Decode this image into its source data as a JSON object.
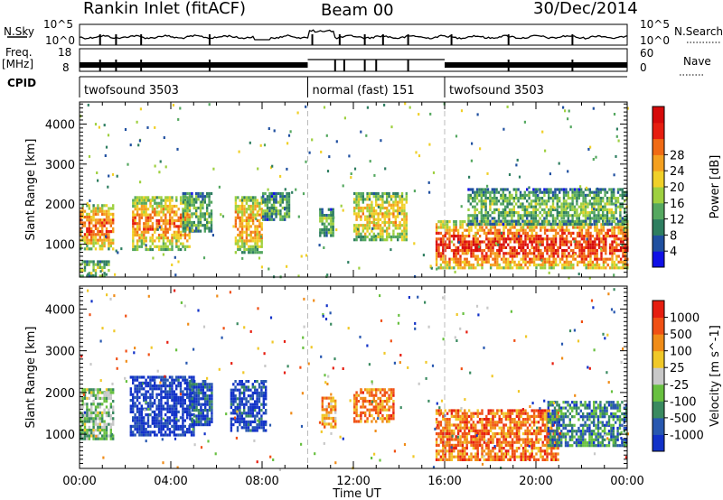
{
  "header": {
    "station": "Rankin Inlet (fitACF)",
    "beam": "Beam 00",
    "date": "30/Dec/2014"
  },
  "strip_labels": {
    "nsky": "N.Sky",
    "nsearch": "N.Search",
    "freq_line1": "Freq.",
    "freq_line2": "[MHz]",
    "nave": "Nave",
    "cpid": "CPID"
  },
  "noise_axis": {
    "left_ticks": [
      "10^5",
      "10^0"
    ],
    "right_ticks": [
      "10^5",
      "10^0"
    ]
  },
  "freq_axis": {
    "left_ticks": [
      "18",
      "8"
    ],
    "right_ticks": [
      "60",
      "0"
    ]
  },
  "cpid_segments": [
    {
      "label": "twofsound 3503",
      "start_h": 0,
      "end_h": 10
    },
    {
      "label": "normal (fast) 151",
      "start_h": 10,
      "end_h": 16
    },
    {
      "label": "twofsound 3503",
      "start_h": 16,
      "end_h": 24
    }
  ],
  "chart_data": [
    {
      "type": "heatmap",
      "title": "",
      "xlabel": "Time UT",
      "ylabel": "Slant Range [km]",
      "xlim_hours": [
        0,
        24
      ],
      "ylim_km": [
        180,
        4550
      ],
      "x_tick_labels": [
        "00:00",
        "04:00",
        "08:00",
        "12:00",
        "16:00",
        "20:00",
        "00:00"
      ],
      "y_tick_labels": [
        "1000",
        "2000",
        "3000",
        "4000"
      ],
      "colorbar": {
        "label": "Power [dB]",
        "ticks": [
          "4",
          "8",
          "12",
          "16",
          "20",
          "24",
          "28"
        ],
        "colors": [
          "#1010e6",
          "#2050a0",
          "#2e7e60",
          "#55a860",
          "#9ed040",
          "#f0d028",
          "#f4a020",
          "#f06a14",
          "#e61e10",
          "#d60a0a"
        ]
      },
      "echo_regions": [
        {
          "t0": 0.0,
          "t1": 1.5,
          "r0": 900,
          "r1": 2000,
          "level": 0.75
        },
        {
          "t0": 0.0,
          "t1": 1.3,
          "r0": 200,
          "r1": 600,
          "level": 0.45
        },
        {
          "t0": 2.3,
          "t1": 4.8,
          "r0": 900,
          "r1": 2200,
          "level": 0.7
        },
        {
          "t0": 4.5,
          "t1": 5.8,
          "r0": 1300,
          "r1": 2300,
          "level": 0.4
        },
        {
          "t0": 6.8,
          "t1": 8.0,
          "r0": 800,
          "r1": 2200,
          "level": 0.65
        },
        {
          "t0": 8.0,
          "t1": 9.2,
          "r0": 1600,
          "r1": 2300,
          "level": 0.35
        },
        {
          "t0": 10.5,
          "t1": 11.1,
          "r0": 1200,
          "r1": 1900,
          "level": 0.4
        },
        {
          "t0": 12.0,
          "t1": 14.3,
          "r0": 1100,
          "r1": 2300,
          "level": 0.6
        },
        {
          "t0": 15.6,
          "t1": 24.0,
          "r0": 400,
          "r1": 1600,
          "level": 0.85
        },
        {
          "t0": 17.0,
          "t1": 24.0,
          "r0": 1500,
          "r1": 2400,
          "level": 0.4
        }
      ]
    },
    {
      "type": "heatmap",
      "title": "",
      "xlabel": "Time UT",
      "ylabel": "Slant Range [km]",
      "xlim_hours": [
        0,
        24
      ],
      "ylim_km": [
        180,
        4550
      ],
      "x_tick_labels": [
        "00:00",
        "04:00",
        "08:00",
        "12:00",
        "16:00",
        "20:00",
        "00:00"
      ],
      "y_tick_labels": [
        "1000",
        "2000",
        "3000",
        "4000"
      ],
      "colorbar": {
        "label": "Velocity [m s^-1]",
        "ticks": [
          "1000",
          "500",
          "100",
          "25",
          "-25",
          "-100",
          "-500",
          "-1000"
        ],
        "colors": [
          "#1232c8",
          "#2858b0",
          "#3a8a60",
          "#68c040",
          "#c8c8c8",
          "#f0c828",
          "#f08c18",
          "#f05014",
          "#e61e10"
        ]
      },
      "echo_regions": [
        {
          "t0": 0.0,
          "t1": 1.5,
          "r0": 900,
          "r1": 2100,
          "level": 0.4
        },
        {
          "t0": 2.2,
          "t1": 5.0,
          "r0": 1000,
          "r1": 2400,
          "level": 0.05
        },
        {
          "t0": 4.8,
          "t1": 5.8,
          "r0": 1200,
          "r1": 2300,
          "level": 0.15
        },
        {
          "t0": 6.6,
          "t1": 8.2,
          "r0": 1100,
          "r1": 2300,
          "level": 0.1
        },
        {
          "t0": 10.6,
          "t1": 11.2,
          "r0": 1200,
          "r1": 1900,
          "level": 0.7
        },
        {
          "t0": 12.0,
          "t1": 13.8,
          "r0": 1300,
          "r1": 2100,
          "level": 0.75
        },
        {
          "t0": 15.6,
          "t1": 21.0,
          "r0": 400,
          "r1": 1600,
          "level": 0.78
        },
        {
          "t0": 20.5,
          "t1": 24.0,
          "r0": 700,
          "r1": 1800,
          "level": 0.25
        }
      ]
    }
  ]
}
